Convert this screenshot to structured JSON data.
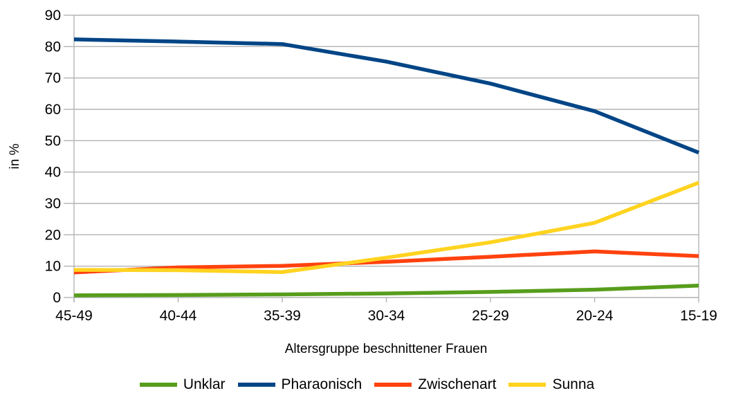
{
  "page": {
    "background_color": "#ffffff",
    "text_color": "#000000"
  },
  "chart_data": {
    "type": "line",
    "title": "",
    "xlabel": "Altersgruppe beschnittener Frauen",
    "ylabel": "in %",
    "categories": [
      "45-49",
      "40-44",
      "35-39",
      "30-34",
      "25-29",
      "20-24",
      "15-19"
    ],
    "series": [
      {
        "name": "Unklar",
        "color": "#579D1C",
        "values": [
          0.7,
          0.8,
          1.0,
          1.3,
          1.8,
          2.5,
          3.8
        ]
      },
      {
        "name": "Pharaonisch",
        "color": "#004586",
        "values": [
          82.3,
          81.6,
          80.8,
          75.2,
          68.2,
          59.4,
          46.2
        ]
      },
      {
        "name": "Zwischenart",
        "color": "#FF420E",
        "values": [
          8.0,
          9.6,
          10.1,
          11.4,
          13.0,
          14.7,
          13.2
        ]
      },
      {
        "name": "Sunna",
        "color": "#FFD320",
        "values": [
          8.8,
          8.7,
          8.1,
          12.7,
          17.6,
          23.8,
          36.6
        ]
      }
    ],
    "ylim": [
      0,
      90
    ],
    "yticks": [
      0,
      10,
      20,
      30,
      40,
      50,
      60,
      70,
      80,
      90
    ],
    "grid": true,
    "gridline_color": "#b3b3b3",
    "axis_line_color": "#b3b3b3",
    "tick_label_color": "#000000",
    "legend_position": "bottom",
    "line_width": 5.5
  }
}
